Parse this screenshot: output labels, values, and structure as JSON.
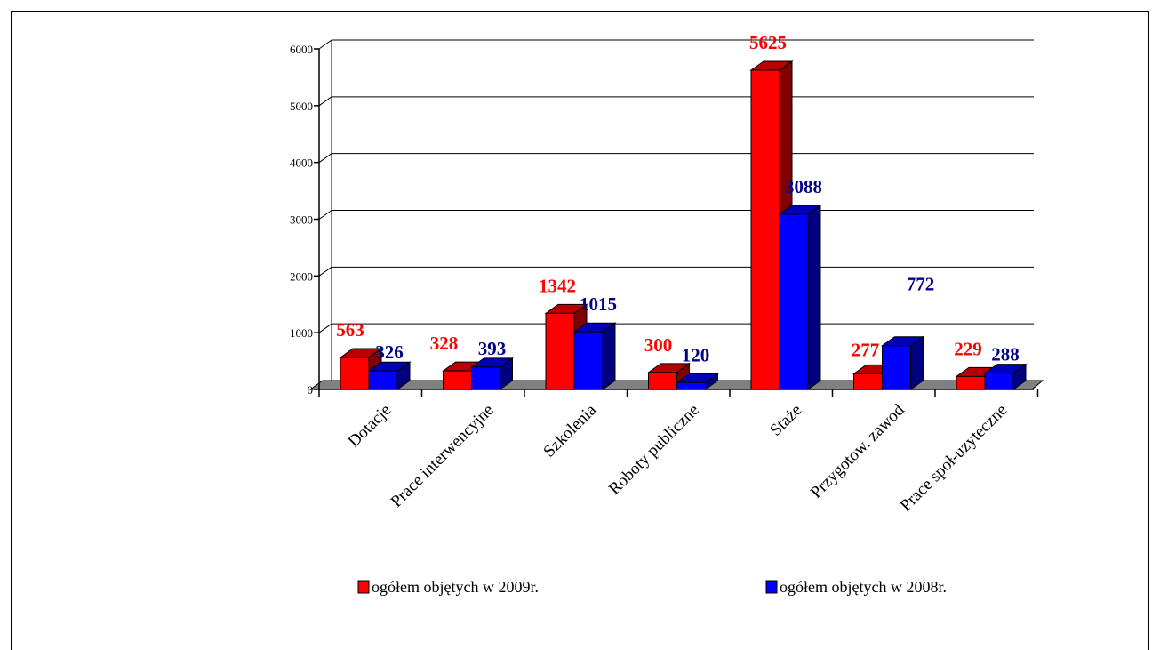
{
  "chart_data": {
    "type": "bar",
    "title": "",
    "xlabel": "",
    "ylabel": "",
    "ylim": [
      0,
      6000
    ],
    "yticks": [
      0,
      1000,
      2000,
      3000,
      4000,
      5000,
      6000
    ],
    "ytick_labels": [
      "0",
      "1000",
      "2000",
      "3000",
      "4000",
      "5000",
      "6000"
    ],
    "grid": true,
    "legend_position": "bottom",
    "categories": [
      "Dotacje",
      "Prace interwencyjne",
      "Szkolenia",
      "Roboty publiczne",
      "Staże",
      "Przygotow. zawod",
      "Prace społ-uzyteczne"
    ],
    "series": [
      {
        "name": "ogółem objętych w 2009r.",
        "color": "#ff0000",
        "label_color": "#ff0000",
        "values": [
          563,
          328,
          1342,
          300,
          5625,
          277,
          229
        ]
      },
      {
        "name": "ogółem objętych w 2008r.",
        "color": "#0000ff",
        "label_color": "#00008b",
        "values": [
          326,
          393,
          1015,
          120,
          3088,
          772,
          288
        ]
      }
    ]
  }
}
